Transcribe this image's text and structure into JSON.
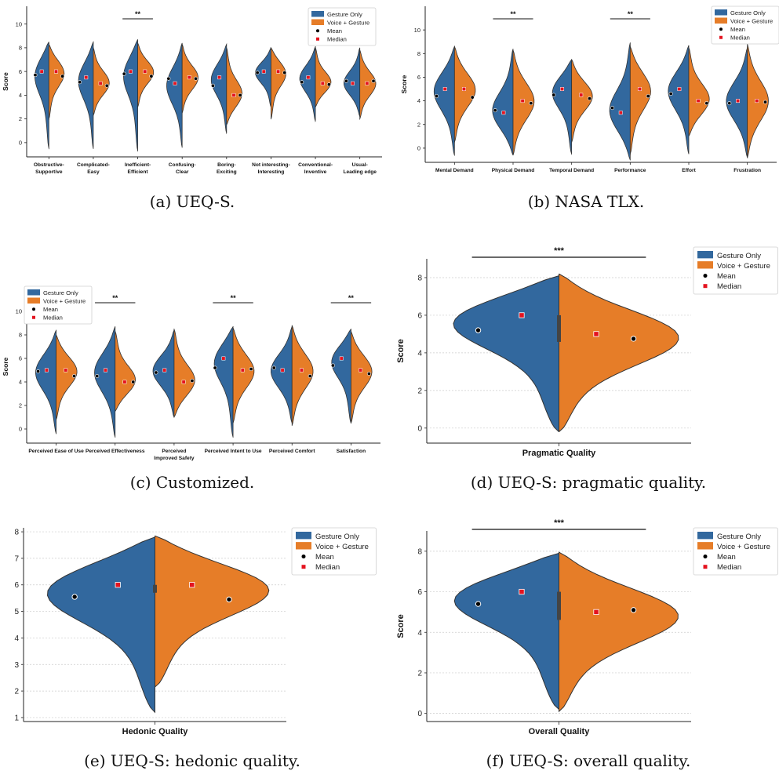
{
  "colors": {
    "gesture": "#32689e",
    "voice": "#e67d28",
    "mean": "#000000",
    "median": "#e4131f",
    "axis": "#222222",
    "grid": "#cccccc"
  },
  "legend": [
    "Gesture Only",
    "Voice + Gesture",
    "Mean",
    "Median"
  ],
  "chart_data": [
    {
      "type": "violin",
      "caption": "(a) UEQ-S.",
      "ylabel": "Score",
      "ylim": [
        -1.2,
        11.5
      ],
      "yticks": [
        0,
        2,
        4,
        6,
        8,
        10
      ],
      "legend_position": "top-right",
      "categories": [
        {
          "label": [
            "Obstructive-",
            "Supportive"
          ],
          "gesture": {
            "range": [
              -0.5,
              8.5
            ],
            "mean": 5.7,
            "median": 6.0
          },
          "voice": {
            "range": [
              2.0,
              8.3
            ],
            "mean": 5.6,
            "median": 6.0
          },
          "sig": ""
        },
        {
          "label": [
            "Complicated-",
            "Easy"
          ],
          "gesture": {
            "range": [
              -0.5,
              8.5
            ],
            "mean": 5.1,
            "median": 5.5
          },
          "voice": {
            "range": [
              2.3,
              8.0
            ],
            "mean": 4.8,
            "median": 5.0
          },
          "sig": ""
        },
        {
          "label": [
            "Inefficient-",
            "Efficient"
          ],
          "gesture": {
            "range": [
              -0.7,
              8.7
            ],
            "mean": 5.8,
            "median": 6.0
          },
          "voice": {
            "range": [
              3.0,
              8.4
            ],
            "mean": 5.6,
            "median": 6.0
          },
          "sig": "**"
        },
        {
          "label": [
            "Confusing-",
            "Clear"
          ],
          "gesture": {
            "range": [
              -0.4,
              8.4
            ],
            "mean": 5.4,
            "median": 5.0
          },
          "voice": {
            "range": [
              2.5,
              8.3
            ],
            "mean": 5.4,
            "median": 5.5
          },
          "sig": ""
        },
        {
          "label": [
            "Boring-",
            "Exciting"
          ],
          "gesture": {
            "range": [
              0.8,
              8.3
            ],
            "mean": 4.8,
            "median": 5.5
          },
          "voice": {
            "range": [
              1.5,
              8.0
            ],
            "mean": 4.0,
            "median": 4.0
          },
          "sig": ""
        },
        {
          "label": [
            "Not interesting-",
            "Interesting"
          ],
          "gesture": {
            "range": [
              3.0,
              8.0
            ],
            "mean": 5.9,
            "median": 6.0
          },
          "voice": {
            "range": [
              2.0,
              8.0
            ],
            "mean": 5.9,
            "median": 6.0
          },
          "sig": ""
        },
        {
          "label": [
            "Conventional-",
            "Inventive"
          ],
          "gesture": {
            "range": [
              1.8,
              8.1
            ],
            "mean": 5.1,
            "median": 5.5
          },
          "voice": {
            "range": [
              3.0,
              8.0
            ],
            "mean": 4.9,
            "median": 5.0
          },
          "sig": ""
        },
        {
          "label": [
            "Usual-",
            "Leading edge"
          ],
          "gesture": {
            "range": [
              2.2,
              8.0
            ],
            "mean": 5.2,
            "median": 5.0
          },
          "voice": {
            "range": [
              2.0,
              7.8
            ],
            "mean": 5.2,
            "median": 5.0
          },
          "sig": ""
        }
      ]
    },
    {
      "type": "violin",
      "caption": "(b) NASA TLX.",
      "ylabel": "Score",
      "ylim": [
        -1.2,
        12.0
      ],
      "yticks": [
        0,
        2,
        4,
        6,
        8,
        10
      ],
      "legend_position": "top-right",
      "categories": [
        {
          "label": [
            "Mental Demand"
          ],
          "gesture": {
            "range": [
              -0.6,
              8.6
            ],
            "mean": 4.4,
            "median": 5.0
          },
          "voice": {
            "range": [
              0.5,
              8.6
            ],
            "mean": 4.3,
            "median": 5.0
          },
          "sig": ""
        },
        {
          "label": [
            "Physical Demand"
          ],
          "gesture": {
            "range": [
              -0.6,
              8.4
            ],
            "mean": 3.2,
            "median": 3.0
          },
          "voice": {
            "range": [
              -0.6,
              8.3
            ],
            "mean": 3.8,
            "median": 4.0
          },
          "sig": "**"
        },
        {
          "label": [
            "Temporal Demand"
          ],
          "gesture": {
            "range": [
              -0.5,
              7.5
            ],
            "mean": 4.5,
            "median": 5.0
          },
          "voice": {
            "range": [
              0.5,
              7.5
            ],
            "mean": 4.2,
            "median": 4.5
          },
          "sig": ""
        },
        {
          "label": [
            "Performance"
          ],
          "gesture": {
            "range": [
              -1.0,
              8.9
            ],
            "mean": 3.4,
            "median": 3.0
          },
          "voice": {
            "range": [
              -0.5,
              8.6
            ],
            "mean": 4.4,
            "median": 5.0
          },
          "sig": "**"
        },
        {
          "label": [
            "Effort"
          ],
          "gesture": {
            "range": [
              -0.5,
              8.7
            ],
            "mean": 4.6,
            "median": 5.0
          },
          "voice": {
            "range": [
              1.0,
              8.5
            ],
            "mean": 3.8,
            "median": 4.0
          },
          "sig": ""
        },
        {
          "label": [
            "Frustration"
          ],
          "gesture": {
            "range": [
              -0.8,
              8.5
            ],
            "mean": 3.8,
            "median": 4.0
          },
          "voice": {
            "range": [
              -0.8,
              8.8
            ],
            "mean": 3.9,
            "median": 4.0
          },
          "sig": ""
        }
      ]
    },
    {
      "type": "violin",
      "caption": "(c) Customized.",
      "ylabel": "Score",
      "ylim": [
        -1.2,
        11.8
      ],
      "yticks": [
        0,
        2,
        4,
        6,
        8,
        10
      ],
      "legend_position": "top-left",
      "categories": [
        {
          "label": [
            "Perceived Ease of Use"
          ],
          "gesture": {
            "range": [
              -0.4,
              8.4
            ],
            "mean": 4.9,
            "median": 5.0
          },
          "voice": {
            "range": [
              0.8,
              8.0
            ],
            "mean": 4.5,
            "median": 5.0
          },
          "sig": ""
        },
        {
          "label": [
            "Perceived Effectiveness"
          ],
          "gesture": {
            "range": [
              -0.7,
              8.7
            ],
            "mean": 4.5,
            "median": 5.0
          },
          "voice": {
            "range": [
              1.5,
              8.3
            ],
            "mean": 4.0,
            "median": 4.0
          },
          "sig": "**"
        },
        {
          "label": [
            "Perceived",
            "Improved Safety"
          ],
          "gesture": {
            "range": [
              1.0,
              8.4
            ],
            "mean": 4.8,
            "median": 5.0
          },
          "voice": {
            "range": [
              1.0,
              8.5
            ],
            "mean": 4.1,
            "median": 4.0
          },
          "sig": ""
        },
        {
          "label": [
            "Perceived Intent to Use"
          ],
          "gesture": {
            "range": [
              -0.7,
              8.7
            ],
            "mean": 5.2,
            "median": 6.0
          },
          "voice": {
            "range": [
              0.5,
              8.6
            ],
            "mean": 5.1,
            "median": 5.0
          },
          "sig": "**"
        },
        {
          "label": [
            "Perceived Comfort"
          ],
          "gesture": {
            "range": [
              0.5,
              8.7
            ],
            "mean": 5.2,
            "median": 5.0
          },
          "voice": {
            "range": [
              0.3,
              8.8
            ],
            "mean": 4.5,
            "median": 5.0
          },
          "sig": ""
        },
        {
          "label": [
            "Satisfaction"
          ],
          "gesture": {
            "range": [
              0.5,
              8.5
            ],
            "mean": 5.4,
            "median": 6.0
          },
          "voice": {
            "range": [
              0.5,
              8.3
            ],
            "mean": 4.7,
            "median": 5.0
          },
          "sig": "**"
        }
      ]
    },
    {
      "type": "violin",
      "caption": "(d) UEQ-S: pragmatic quality.",
      "ylabel": "Score",
      "xlabel": "Pragmatic Quality",
      "ylim": [
        -0.8,
        9.0
      ],
      "yticks": [
        0,
        2,
        4,
        6,
        8
      ],
      "grid": true,
      "legend_position": "outside-right",
      "sig": "***",
      "gesture": {
        "range": [
          -0.2,
          8.1
        ],
        "mean": 5.2,
        "median": 6.0
      },
      "voice": {
        "range": [
          -0.2,
          8.2
        ],
        "mean": 4.75,
        "median": 5.0
      }
    },
    {
      "type": "violin",
      "caption": "(e) UEQ-S: hedonic quality.",
      "ylabel": "Score",
      "xlabel": "Hedonic Quality",
      "ylim": [
        0.85,
        8.15
      ],
      "yticks": [
        1,
        2,
        3,
        4,
        5,
        6,
        7,
        8
      ],
      "grid": true,
      "legend_position": "outside-right",
      "sig": "",
      "gesture": {
        "range": [
          1.2,
          7.8
        ],
        "mean": 5.55,
        "median": 6.0
      },
      "voice": {
        "range": [
          2.15,
          7.85
        ],
        "mean": 5.45,
        "median": 6.0
      }
    },
    {
      "type": "violin",
      "caption": "(f) UEQ-S: overall quality.",
      "ylabel": "Score",
      "xlabel": "Overall Quality",
      "ylim": [
        -0.4,
        9.0
      ],
      "yticks": [
        0,
        2,
        4,
        6,
        8
      ],
      "grid": true,
      "legend_position": "outside-right",
      "sig": "***",
      "gesture": {
        "range": [
          0.2,
          7.9
        ],
        "mean": 5.4,
        "median": 6.0
      },
      "voice": {
        "range": [
          0.1,
          7.95
        ],
        "mean": 5.1,
        "median": 5.0
      }
    }
  ]
}
